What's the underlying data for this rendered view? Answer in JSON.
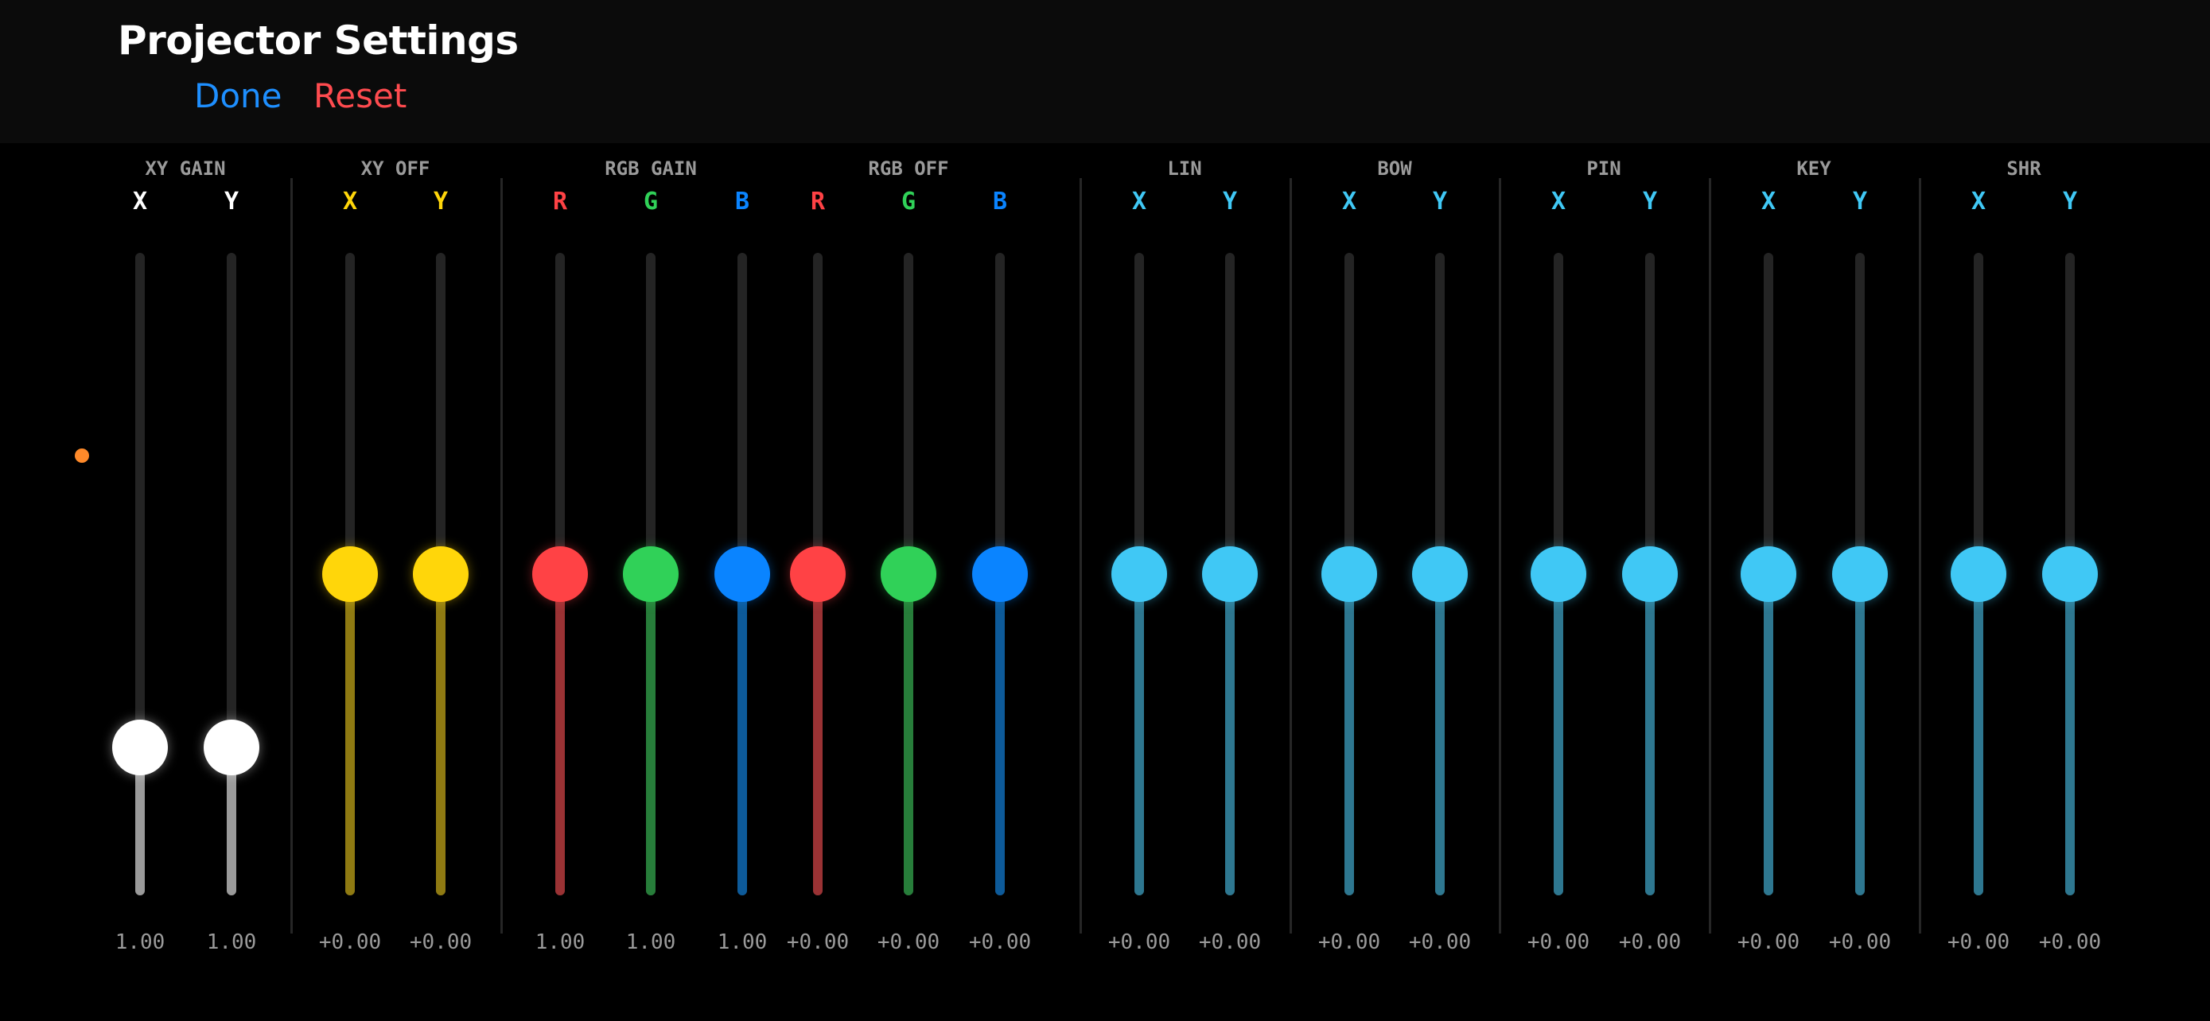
{
  "header": {
    "title": "Projector Settings",
    "done_label": "Done",
    "reset_label": "Reset",
    "done_color": "#1e8fff",
    "reset_color": "#ff4b4f"
  },
  "indicator": {
    "color": "#ff8a2a"
  },
  "groups": [
    {
      "label": "XY GAIN",
      "channels": [
        {
          "label": "X",
          "value_text": "1.00",
          "level": 0.23,
          "color": "#ffffff",
          "fill": "#9a9a9a"
        },
        {
          "label": "Y",
          "value_text": "1.00",
          "level": 0.23,
          "color": "#ffffff",
          "fill": "#9a9a9a"
        }
      ]
    },
    {
      "label": "XY OFF",
      "channels": [
        {
          "label": "X",
          "value_text": "+0.00",
          "level": 0.5,
          "color": "#ffd60a",
          "fill": "#8f7a12"
        },
        {
          "label": "Y",
          "value_text": "+0.00",
          "level": 0.5,
          "color": "#ffd60a",
          "fill": "#8f7a12"
        }
      ]
    },
    {
      "label": "RGB GAIN",
      "channels": [
        {
          "label": "R",
          "value_text": "1.00",
          "level": 0.5,
          "color": "#ff4245",
          "fill": "#9a3234"
        },
        {
          "label": "G",
          "value_text": "1.00",
          "level": 0.5,
          "color": "#30d158",
          "fill": "#277d3a"
        },
        {
          "label": "B",
          "value_text": "1.00",
          "level": 0.5,
          "color": "#0a84ff",
          "fill": "#0d5a99"
        }
      ]
    },
    {
      "label": "RGB OFF",
      "channels": [
        {
          "label": "R",
          "value_text": "+0.00",
          "level": 0.5,
          "color": "#ff4245",
          "fill": "#9a3234"
        },
        {
          "label": "G",
          "value_text": "+0.00",
          "level": 0.5,
          "color": "#30d158",
          "fill": "#277d3a"
        },
        {
          "label": "B",
          "value_text": "+0.00",
          "level": 0.5,
          "color": "#0a84ff",
          "fill": "#0d5a99"
        }
      ]
    },
    {
      "label": "LIN",
      "channels": [
        {
          "label": "X",
          "value_text": "+0.00",
          "level": 0.5,
          "color": "#40c8f5",
          "fill": "#2e7790"
        },
        {
          "label": "Y",
          "value_text": "+0.00",
          "level": 0.5,
          "color": "#40c8f5",
          "fill": "#2e7790"
        }
      ]
    },
    {
      "label": "BOW",
      "channels": [
        {
          "label": "X",
          "value_text": "+0.00",
          "level": 0.5,
          "color": "#40c8f5",
          "fill": "#2e7790"
        },
        {
          "label": "Y",
          "value_text": "+0.00",
          "level": 0.5,
          "color": "#40c8f5",
          "fill": "#2e7790"
        }
      ]
    },
    {
      "label": "PIN",
      "channels": [
        {
          "label": "X",
          "value_text": "+0.00",
          "level": 0.5,
          "color": "#40c8f5",
          "fill": "#2e7790"
        },
        {
          "label": "Y",
          "value_text": "+0.00",
          "level": 0.5,
          "color": "#40c8f5",
          "fill": "#2e7790"
        }
      ]
    },
    {
      "label": "KEY",
      "channels": [
        {
          "label": "X",
          "value_text": "+0.00",
          "level": 0.5,
          "color": "#40c8f5",
          "fill": "#2e7790"
        },
        {
          "label": "Y",
          "value_text": "+0.00",
          "level": 0.5,
          "color": "#40c8f5",
          "fill": "#2e7790"
        }
      ]
    },
    {
      "label": "SHR",
      "channels": [
        {
          "label": "X",
          "value_text": "+0.00",
          "level": 0.5,
          "color": "#40c8f5",
          "fill": "#2e7790"
        },
        {
          "label": "Y",
          "value_text": "+0.00",
          "level": 0.5,
          "color": "#40c8f5",
          "fill": "#2e7790"
        }
      ]
    }
  ]
}
